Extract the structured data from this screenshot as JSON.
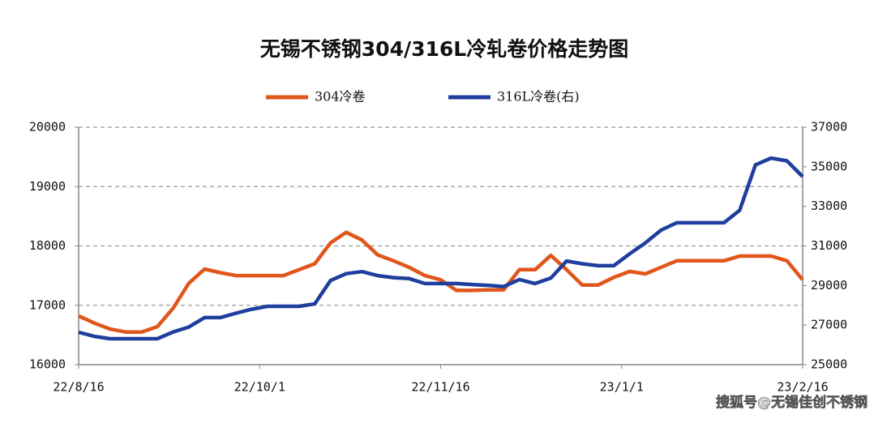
{
  "chart_data": {
    "type": "line",
    "title": "无锡不锈钢304/316L冷轧卷价格走势图",
    "watermark": "搜狐号@无锡佳创不锈钢",
    "x": [
      "22/8/16",
      "22/8/20",
      "22/8/24",
      "22/8/28",
      "22/9/1",
      "22/9/5",
      "22/9/9",
      "22/9/13",
      "22/9/17",
      "22/9/21",
      "22/9/25",
      "22/9/29",
      "22/10/3",
      "22/10/7",
      "22/10/11",
      "22/10/15",
      "22/10/19",
      "22/10/23",
      "22/10/27",
      "22/10/31",
      "22/11/4",
      "22/11/8",
      "22/11/12",
      "22/11/16",
      "22/11/20",
      "22/11/24",
      "22/11/28",
      "22/12/2",
      "22/12/6",
      "22/12/10",
      "22/12/14",
      "22/12/18",
      "22/12/22",
      "22/12/26",
      "22/12/30",
      "23/1/3",
      "23/1/7",
      "23/1/11",
      "23/1/15",
      "23/1/19",
      "23/1/23",
      "23/1/27",
      "23/1/31",
      "23/2/4",
      "23/2/8",
      "23/2/12",
      "23/2/16"
    ],
    "series": [
      {
        "name": "304冷卷",
        "color": "#e0561b",
        "axis": "y",
        "values": [
          16820,
          16700,
          16600,
          16550,
          16550,
          16640,
          16950,
          17370,
          17610,
          17550,
          17500,
          17500,
          17500,
          17500,
          17600,
          17700,
          18050,
          18230,
          18100,
          17850,
          17750,
          17640,
          17500,
          17430,
          17250,
          17250,
          17260,
          17260,
          17600,
          17600,
          17840,
          17600,
          17340,
          17340,
          17470,
          17570,
          17530,
          17640,
          17750,
          17750,
          17750,
          17750,
          17830,
          17830,
          17830,
          17750,
          17430
        ]
      },
      {
        "name": "316L冷卷(右)",
        "color": "#1f3f9e",
        "axis": "y2",
        "values": [
          26640,
          26430,
          26310,
          26310,
          26310,
          26310,
          26650,
          26900,
          27380,
          27380,
          27600,
          27800,
          27950,
          27950,
          27950,
          28070,
          29250,
          29600,
          29700,
          29500,
          29400,
          29350,
          29100,
          29100,
          29100,
          29050,
          29010,
          28950,
          29300,
          29100,
          29380,
          30240,
          30100,
          30000,
          30000,
          30600,
          31150,
          31800,
          32170,
          32170,
          32170,
          32170,
          32800,
          35100,
          35440,
          35300,
          34500
        ]
      }
    ],
    "xlim": [
      "22/8/16",
      "23/2/16"
    ],
    "xticks": [
      "22/8/16",
      "22/10/1",
      "22/11/16",
      "23/1/1",
      "23/2/16"
    ],
    "ylim": [
      16000,
      20000
    ],
    "yticks": [
      16000,
      17000,
      18000,
      19000,
      20000
    ],
    "y2lim": [
      25000,
      37000
    ],
    "y2ticks": [
      25000,
      27000,
      29000,
      31000,
      33000,
      35000,
      37000
    ],
    "grid": true
  }
}
